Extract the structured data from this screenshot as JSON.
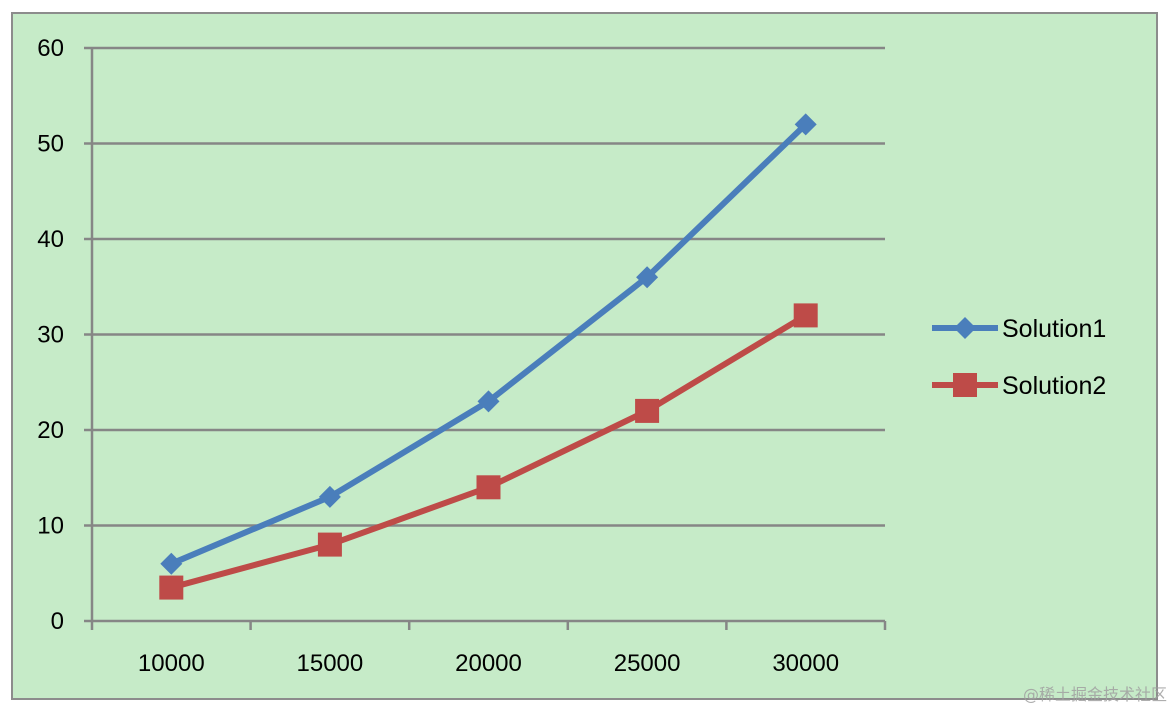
{
  "chart_data": {
    "type": "line",
    "title": "",
    "xlabel": "",
    "ylabel": "",
    "categories": [
      "10000",
      "15000",
      "20000",
      "25000",
      "30000"
    ],
    "ylim": [
      0,
      60
    ],
    "yticks": [
      0,
      10,
      20,
      30,
      40,
      50,
      60
    ],
    "grid": "horizontal",
    "legend_position": "right",
    "series": [
      {
        "name": "Solution1",
        "values": [
          6,
          13,
          23,
          36,
          52
        ],
        "color": "#4a7ebb",
        "marker": "diamond"
      },
      {
        "name": "Solution2",
        "values": [
          3.5,
          8,
          14,
          22,
          32
        ],
        "color": "#be4b48",
        "marker": "square"
      }
    ]
  },
  "background_color": "#c6ebc8",
  "watermark": "@稀土掘金技术社区"
}
